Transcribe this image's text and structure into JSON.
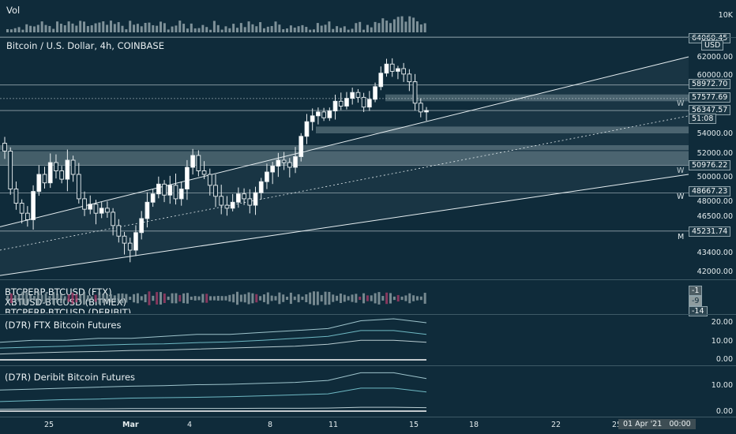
{
  "vol_pane": {
    "title": "Vol",
    "tick": "10K",
    "tag": "64060.45"
  },
  "price_pane": {
    "title": "Bitcoin / U.S. Dollar, 4h, COINBASE",
    "currency_tag": "USD",
    "price_tags": [
      "58972.70",
      "57577.69",
      "56347.57",
      "51:08",
      "50976.22",
      "48667.23",
      "45231.74"
    ],
    "level_marks": [
      "W",
      "W",
      "W",
      "M"
    ],
    "axis_ticks": [
      "62000.00",
      "60000.00",
      "54000.00",
      "52000.00",
      "50000.00",
      "48000.00",
      "46500.00",
      "43400.00",
      "42000.00"
    ]
  },
  "basis_pane": {
    "series": [
      "BTCPERP-BTCUSD (FTX)",
      "XBTUSD-BTCUSD (BITMEX)",
      "BTCPERP-BTCUSD (DERIBIT)"
    ],
    "values": [
      "-1",
      "-9",
      "-14"
    ]
  },
  "ftx_pane": {
    "title": "(D7R) FTX Bitcoin Futures",
    "ticks": [
      "20.00",
      "10.00",
      "0.00"
    ]
  },
  "deribit_pane": {
    "title": "(D7R) Deribit Bitcoin Futures",
    "ticks": [
      "10.00",
      "0.00"
    ]
  },
  "x_axis": {
    "labels": [
      "25",
      "Mar",
      "4",
      "8",
      "11",
      "15",
      "18",
      "22",
      "25"
    ],
    "crosshair_label": "01 Apr '21   00:00"
  },
  "chart_data": {
    "type": "candlestick",
    "title": "Bitcoin / U.S. Dollar, 4h, COINBASE",
    "x_labels": [
      "25",
      "Mar",
      "4",
      "8",
      "11",
      "15",
      "18",
      "22",
      "25"
    ],
    "ylim": [
      41500,
      63000
    ],
    "key_levels": [
      64060.45,
      58972.7,
      57577.69,
      56347.57,
      50976.22,
      48667.23,
      45231.74
    ],
    "zones": [
      [
        54000,
        54700
      ],
      [
        52300,
        52800
      ],
      [
        51000,
        52200
      ],
      [
        57300,
        58000
      ]
    ],
    "channel": {
      "lower_start": 41700,
      "lower_end": 50200,
      "upper_start": 45600,
      "upper_end": 62000,
      "mid_start": 43600,
      "mid_end": 55800
    },
    "closes": [
      52200,
      49000,
      47800,
      46800,
      46200,
      48800,
      50200,
      49500,
      51200,
      50500,
      49800,
      51400,
      50200,
      48200,
      47200,
      47700,
      46800,
      47300,
      46900,
      45700,
      44800,
      44200,
      43600,
      45100,
      46300,
      47900,
      48600,
      49400,
      48500,
      49300,
      48200,
      49000,
      50800,
      51800,
      50500,
      50200,
      49300,
      48400,
      47600,
      47300,
      47900,
      48600,
      48200,
      47600,
      48700,
      49600,
      50400,
      50900,
      51400,
      51200,
      50800,
      51700,
      53700,
      55200,
      55800,
      56200,
      55600,
      56300,
      57300,
      56800,
      57600,
      58200,
      57700,
      56700,
      57500,
      58800,
      60200,
      61200,
      60400,
      60700,
      60100,
      59300,
      57100,
      56200,
      56350
    ],
    "ftx_series": [
      {
        "name": "s1",
        "values": [
          9,
          10,
          10,
          11,
          11,
          12,
          13,
          13,
          14,
          15,
          16,
          20,
          21,
          19
        ]
      },
      {
        "name": "s2",
        "values": [
          6,
          6.5,
          7,
          7.5,
          8,
          8.2,
          8.8,
          9.2,
          10,
          11,
          12,
          15,
          15,
          13
        ]
      },
      {
        "name": "s3",
        "values": [
          3,
          3.5,
          4,
          4.3,
          4.8,
          5,
          5.5,
          6,
          6.5,
          7,
          8,
          10,
          10,
          9
        ]
      }
    ],
    "deribit_series": [
      {
        "name": "s1",
        "values": [
          11,
          11.5,
          12,
          12.5,
          13,
          13.3,
          13.8,
          14,
          14.5,
          15,
          16,
          20,
          20,
          17
        ]
      },
      {
        "name": "s2",
        "values": [
          5,
          5.5,
          6,
          6.3,
          6.8,
          7,
          7.2,
          7.5,
          8,
          8.5,
          9,
          12,
          12,
          10
        ]
      },
      {
        "name": "s3",
        "values": [
          1,
          1.1,
          1.2,
          1.2,
          1.3,
          1.3,
          1.4,
          1.4,
          1.5,
          1.5,
          1.6,
          2,
          2,
          1.8
        ]
      }
    ]
  }
}
